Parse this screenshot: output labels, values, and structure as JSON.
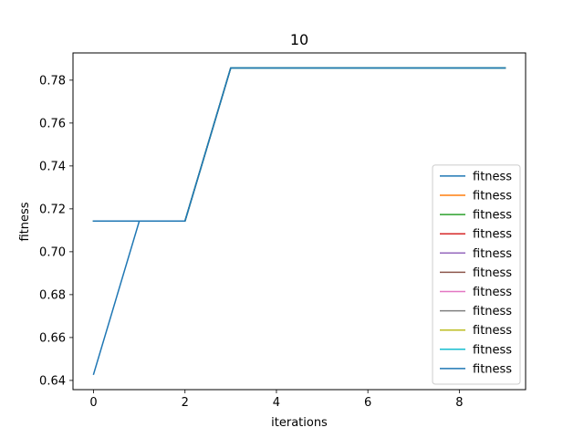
{
  "chart_data": {
    "type": "line",
    "title": "10",
    "xlabel": "iterations",
    "ylabel": "fitness",
    "xlim": [
      -0.45,
      9.45
    ],
    "ylim": [
      0.6357,
      0.7927
    ],
    "xticks": [
      0,
      2,
      4,
      6,
      8
    ],
    "xtick_labels": [
      "0",
      "2",
      "4",
      "6",
      "8"
    ],
    "yticks": [
      0.64,
      0.66,
      0.68,
      0.7,
      0.72,
      0.74,
      0.76,
      0.78
    ],
    "ytick_labels": [
      "0.64",
      "0.66",
      "0.68",
      "0.70",
      "0.72",
      "0.74",
      "0.76",
      "0.78"
    ],
    "grid": false,
    "legend_position": "lower-right",
    "x": [
      0,
      1,
      2,
      3,
      4,
      5,
      6,
      7,
      8,
      9
    ],
    "series": [
      {
        "name": "fitness",
        "color": "#1f77b4",
        "values": [
          0.6429,
          0.7143,
          0.7143,
          0.7857,
          0.7857,
          0.7857,
          0.7857,
          0.7857,
          0.7857,
          0.7857
        ]
      },
      {
        "name": "fitness",
        "color": "#ff7f0e",
        "values": [
          0.7143,
          0.7143,
          0.7143,
          0.7857,
          0.7857,
          0.7857,
          0.7857,
          0.7857,
          0.7857,
          0.7857
        ]
      },
      {
        "name": "fitness",
        "color": "#2ca02c",
        "values": [
          0.7143,
          0.7143,
          0.7143,
          0.7857,
          0.7857,
          0.7857,
          0.7857,
          0.7857,
          0.7857,
          0.7857
        ]
      },
      {
        "name": "fitness",
        "color": "#d62728",
        "values": [
          0.7143,
          0.7143,
          0.7143,
          0.7857,
          0.7857,
          0.7857,
          0.7857,
          0.7857,
          0.7857,
          0.7857
        ]
      },
      {
        "name": "fitness",
        "color": "#9467bd",
        "values": [
          0.7143,
          0.7143,
          0.7143,
          0.7857,
          0.7857,
          0.7857,
          0.7857,
          0.7857,
          0.7857,
          0.7857
        ]
      },
      {
        "name": "fitness",
        "color": "#8c564b",
        "values": [
          0.7143,
          0.7143,
          0.7143,
          0.7857,
          0.7857,
          0.7857,
          0.7857,
          0.7857,
          0.7857,
          0.7857
        ]
      },
      {
        "name": "fitness",
        "color": "#e377c2",
        "values": [
          0.7143,
          0.7143,
          0.7143,
          0.7857,
          0.7857,
          0.7857,
          0.7857,
          0.7857,
          0.7857,
          0.7857
        ]
      },
      {
        "name": "fitness",
        "color": "#7f7f7f",
        "values": [
          0.7143,
          0.7143,
          0.7143,
          0.7857,
          0.7857,
          0.7857,
          0.7857,
          0.7857,
          0.7857,
          0.7857
        ]
      },
      {
        "name": "fitness",
        "color": "#bcbd22",
        "values": [
          0.7143,
          0.7143,
          0.7143,
          0.7857,
          0.7857,
          0.7857,
          0.7857,
          0.7857,
          0.7857,
          0.7857
        ]
      },
      {
        "name": "fitness",
        "color": "#17becf",
        "values": [
          0.7143,
          0.7143,
          0.7143,
          0.7857,
          0.7857,
          0.7857,
          0.7857,
          0.7857,
          0.7857,
          0.7857
        ]
      },
      {
        "name": "fitness",
        "color": "#1f77b4",
        "values": [
          0.7143,
          0.7143,
          0.7143,
          0.7857,
          0.7857,
          0.7857,
          0.7857,
          0.7857,
          0.7857,
          0.7857
        ]
      }
    ]
  }
}
